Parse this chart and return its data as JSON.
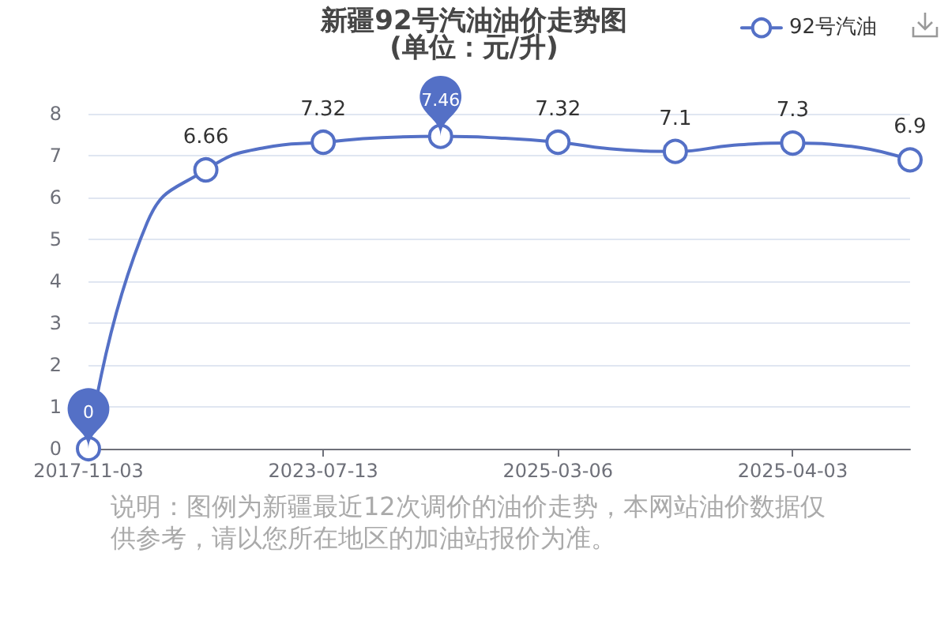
{
  "chart_data": {
    "type": "line",
    "title": "新疆92号汽油油价走势图",
    "subtitle": "(单位：元/升)",
    "categories": [
      "2017-11-03",
      null,
      null,
      null,
      "2023-07-13",
      null,
      null,
      null,
      "2025-03-06",
      null,
      null,
      null,
      "2025-04-03",
      null,
      null
    ],
    "series": [
      {
        "name": "92号汽油",
        "color": "#5470c6",
        "values": [
          0,
          5.4,
          6.66,
          7.19,
          7.32,
          7.43,
          7.46,
          7.42,
          7.32,
          7.15,
          7.1,
          7.25,
          7.3,
          7.22,
          6.9
        ],
        "value_labels": [
          null,
          null,
          "6.66",
          null,
          "7.32",
          null,
          null,
          null,
          "7.32",
          null,
          "7.1",
          null,
          "7.3",
          null,
          "6.9"
        ]
      }
    ],
    "ylim": [
      0,
      8
    ],
    "yticks": [
      0,
      1,
      2,
      3,
      4,
      5,
      6,
      7,
      8
    ],
    "grid": "y",
    "legend": "top right",
    "marker": "circle",
    "annotations": [
      {
        "text": "7.46",
        "y": 7.46
      },
      {
        "text": "0",
        "x": "2017-11-03",
        "y": 0
      },
      "说明：图例为新疆最近12次调价的油价走势，本网站油价数据仅供参考，请以您所在地区的加油站报价为准。"
    ]
  }
}
